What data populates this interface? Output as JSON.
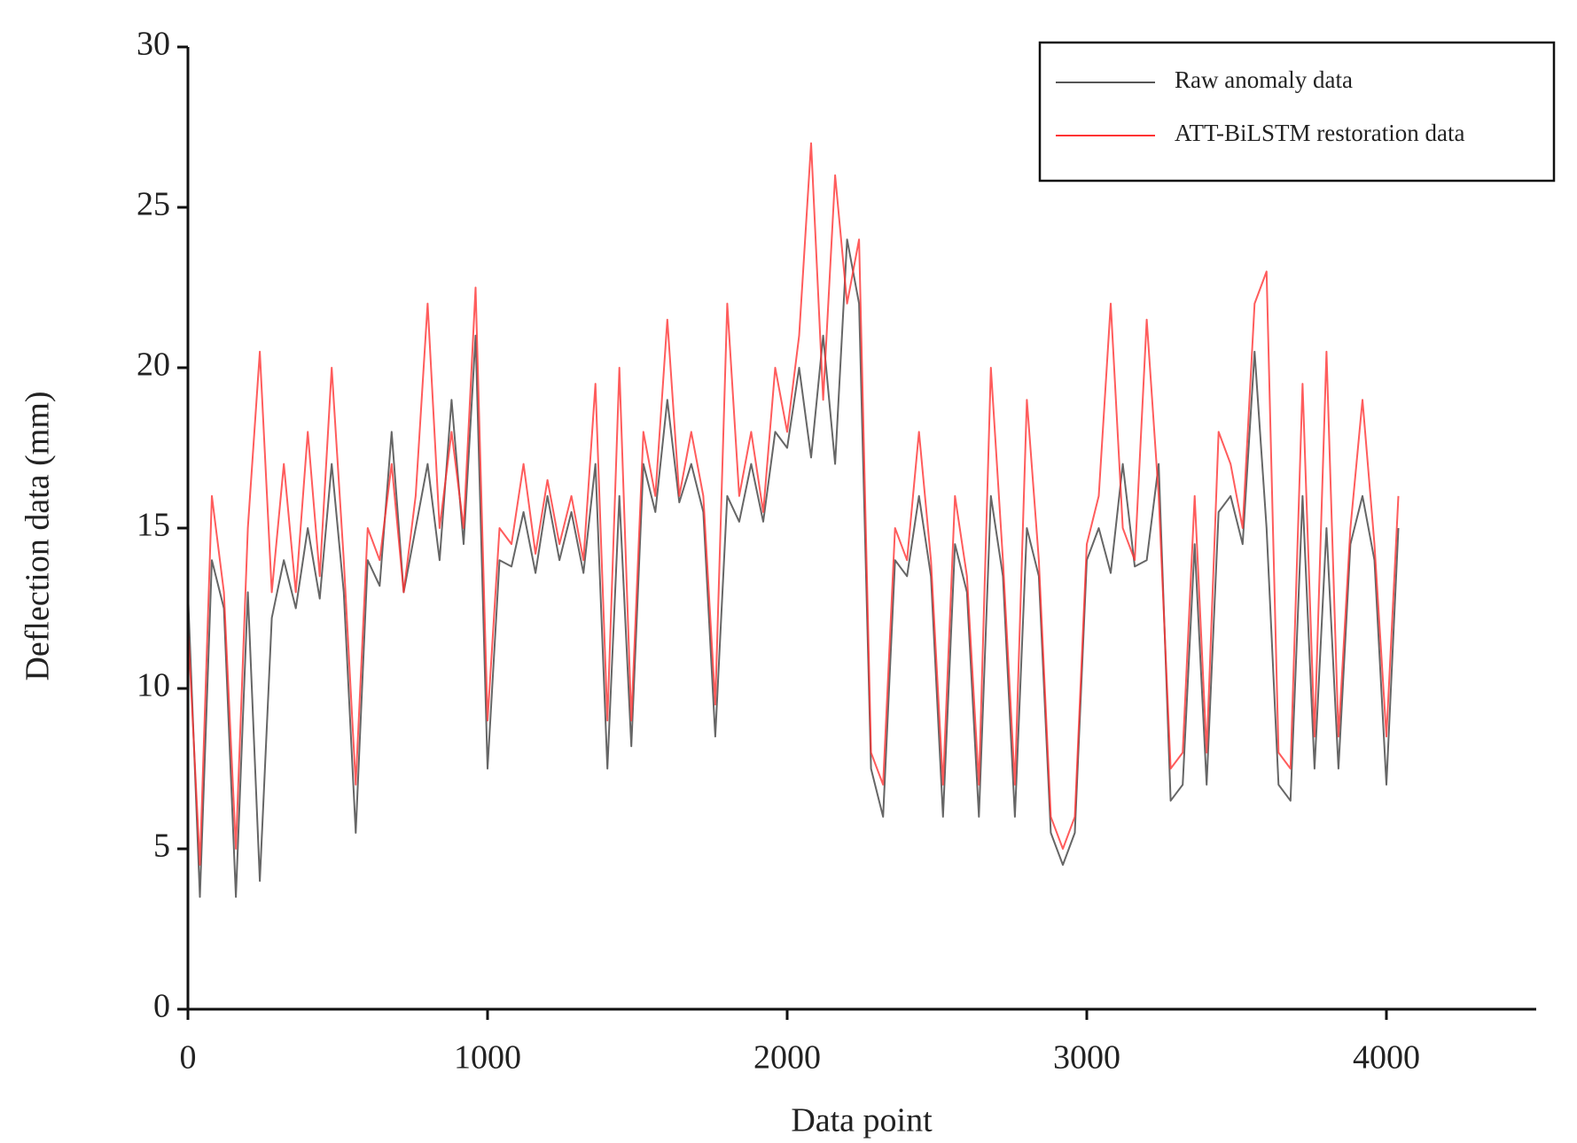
{
  "chart_data": {
    "type": "line",
    "x_label": "Data point",
    "y_label": "Deflection data (mm)",
    "x": [
      0,
      40,
      80,
      120,
      160,
      200,
      240,
      280,
      320,
      360,
      400,
      440,
      480,
      520,
      560,
      600,
      640,
      680,
      720,
      760,
      800,
      840,
      880,
      920,
      960,
      1000,
      1040,
      1080,
      1120,
      1160,
      1200,
      1240,
      1280,
      1320,
      1360,
      1400,
      1440,
      1480,
      1520,
      1560,
      1600,
      1640,
      1680,
      1720,
      1760,
      1800,
      1840,
      1880,
      1920,
      1960,
      2000,
      2040,
      2080,
      2120,
      2160,
      2200,
      2240,
      2280,
      2320,
      2360,
      2400,
      2440,
      2480,
      2520,
      2560,
      2600,
      2640,
      2680,
      2720,
      2760,
      2800,
      2840,
      2880,
      2920,
      2960,
      3000,
      3040,
      3080,
      3120,
      3160,
      3200,
      3240,
      3280,
      3320,
      3360,
      3400,
      3440,
      3480,
      3520,
      3560,
      3600,
      3640,
      3680,
      3720,
      3760,
      3800,
      3840,
      3880,
      3920,
      3960,
      4000,
      4040
    ],
    "series": [
      {
        "name": "Raw anomaly data",
        "color": "#555555",
        "values": [
          13,
          3.5,
          14,
          12.5,
          3.5,
          13,
          4,
          12.2,
          14,
          12.5,
          15,
          12.8,
          17,
          13,
          5.5,
          14,
          13.2,
          18,
          13,
          15,
          17,
          14,
          19,
          14.5,
          21,
          7.5,
          14,
          13.8,
          15.5,
          13.6,
          16,
          14,
          15.5,
          13.6,
          17,
          7.5,
          16,
          8.2,
          17,
          15.5,
          19,
          15.8,
          17,
          15.5,
          8.5,
          16,
          15.2,
          17,
          15.2,
          18,
          17.5,
          20,
          17.2,
          21,
          17,
          24,
          22,
          7.5,
          6,
          14,
          13.5,
          16,
          13.5,
          6,
          14.5,
          13,
          6,
          16,
          13.5,
          6,
          15,
          13.5,
          5.5,
          4.5,
          5.5,
          14,
          15,
          13.6,
          17,
          13.8,
          14,
          17,
          6.5,
          7,
          14.5,
          7,
          15.5,
          16,
          14.5,
          20.5,
          15,
          7,
          6.5,
          16,
          7.5,
          15,
          7.5,
          14.5,
          16,
          14,
          7,
          15
        ]
      },
      {
        "name": "ATT-BiLSTM restoration data",
        "color": "#ff3333",
        "values": [
          12,
          4.5,
          16,
          13,
          5,
          15,
          20.5,
          13,
          17,
          13,
          18,
          13.5,
          20,
          14,
          7,
          15,
          14,
          17,
          13,
          16,
          22,
          15,
          18,
          15,
          22.5,
          9,
          15,
          14.5,
          17,
          14.2,
          16.5,
          14.5,
          16,
          14,
          19.5,
          9,
          20,
          9,
          18,
          16,
          21.5,
          16,
          18,
          16,
          9.5,
          22,
          16,
          18,
          15.5,
          20,
          18,
          21,
          27,
          19,
          26,
          22,
          24,
          8,
          7,
          15,
          14,
          18,
          14,
          7,
          16,
          13.5,
          7,
          20,
          14,
          7,
          19,
          14,
          6,
          5,
          6,
          14.5,
          16,
          22,
          15,
          14,
          21.5,
          16,
          7.5,
          8,
          16,
          8,
          18,
          17,
          15,
          22,
          23,
          8,
          7.5,
          19.5,
          8.5,
          20.5,
          8.5,
          15,
          19,
          14.5,
          8.5,
          16
        ]
      }
    ],
    "xlim": [
      0,
      4500
    ],
    "xticks": [
      0,
      1000,
      2000,
      3000,
      4000
    ],
    "ylim": [
      0,
      30
    ],
    "yticks": [
      0,
      5,
      10,
      15,
      20,
      25,
      30
    ],
    "legend": "upper right"
  }
}
